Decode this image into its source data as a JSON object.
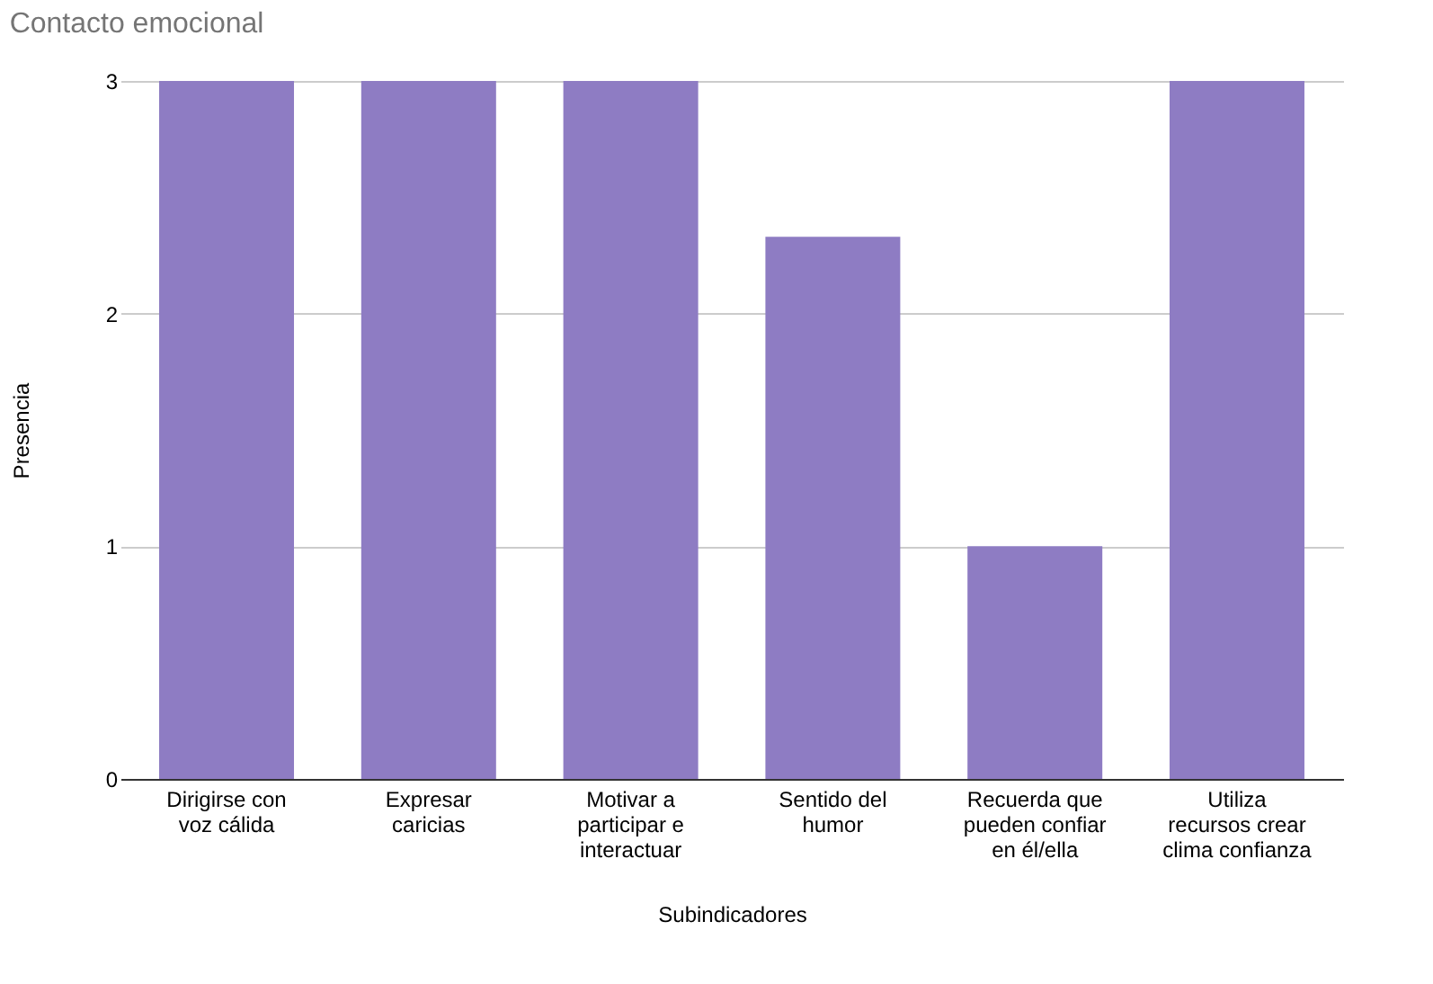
{
  "chart_data": {
    "type": "bar",
    "title": "Contacto emocional",
    "xlabel": "Subindicadores",
    "ylabel": "Presencia",
    "categories": [
      "Dirigirse con voz cálida",
      "Expresar caricias",
      "Motivar a participar e interactuar",
      "Sentido del humor",
      "Recuerda que pueden confiar en él/ella",
      "Utiliza recursos crear clima confianza"
    ],
    "values": [
      3,
      3,
      3,
      2.33,
      1,
      3
    ],
    "color": "#8e7cc3",
    "ylim": [
      0,
      3
    ],
    "yticks": [
      0,
      1,
      2,
      3
    ],
    "grid": "y"
  }
}
